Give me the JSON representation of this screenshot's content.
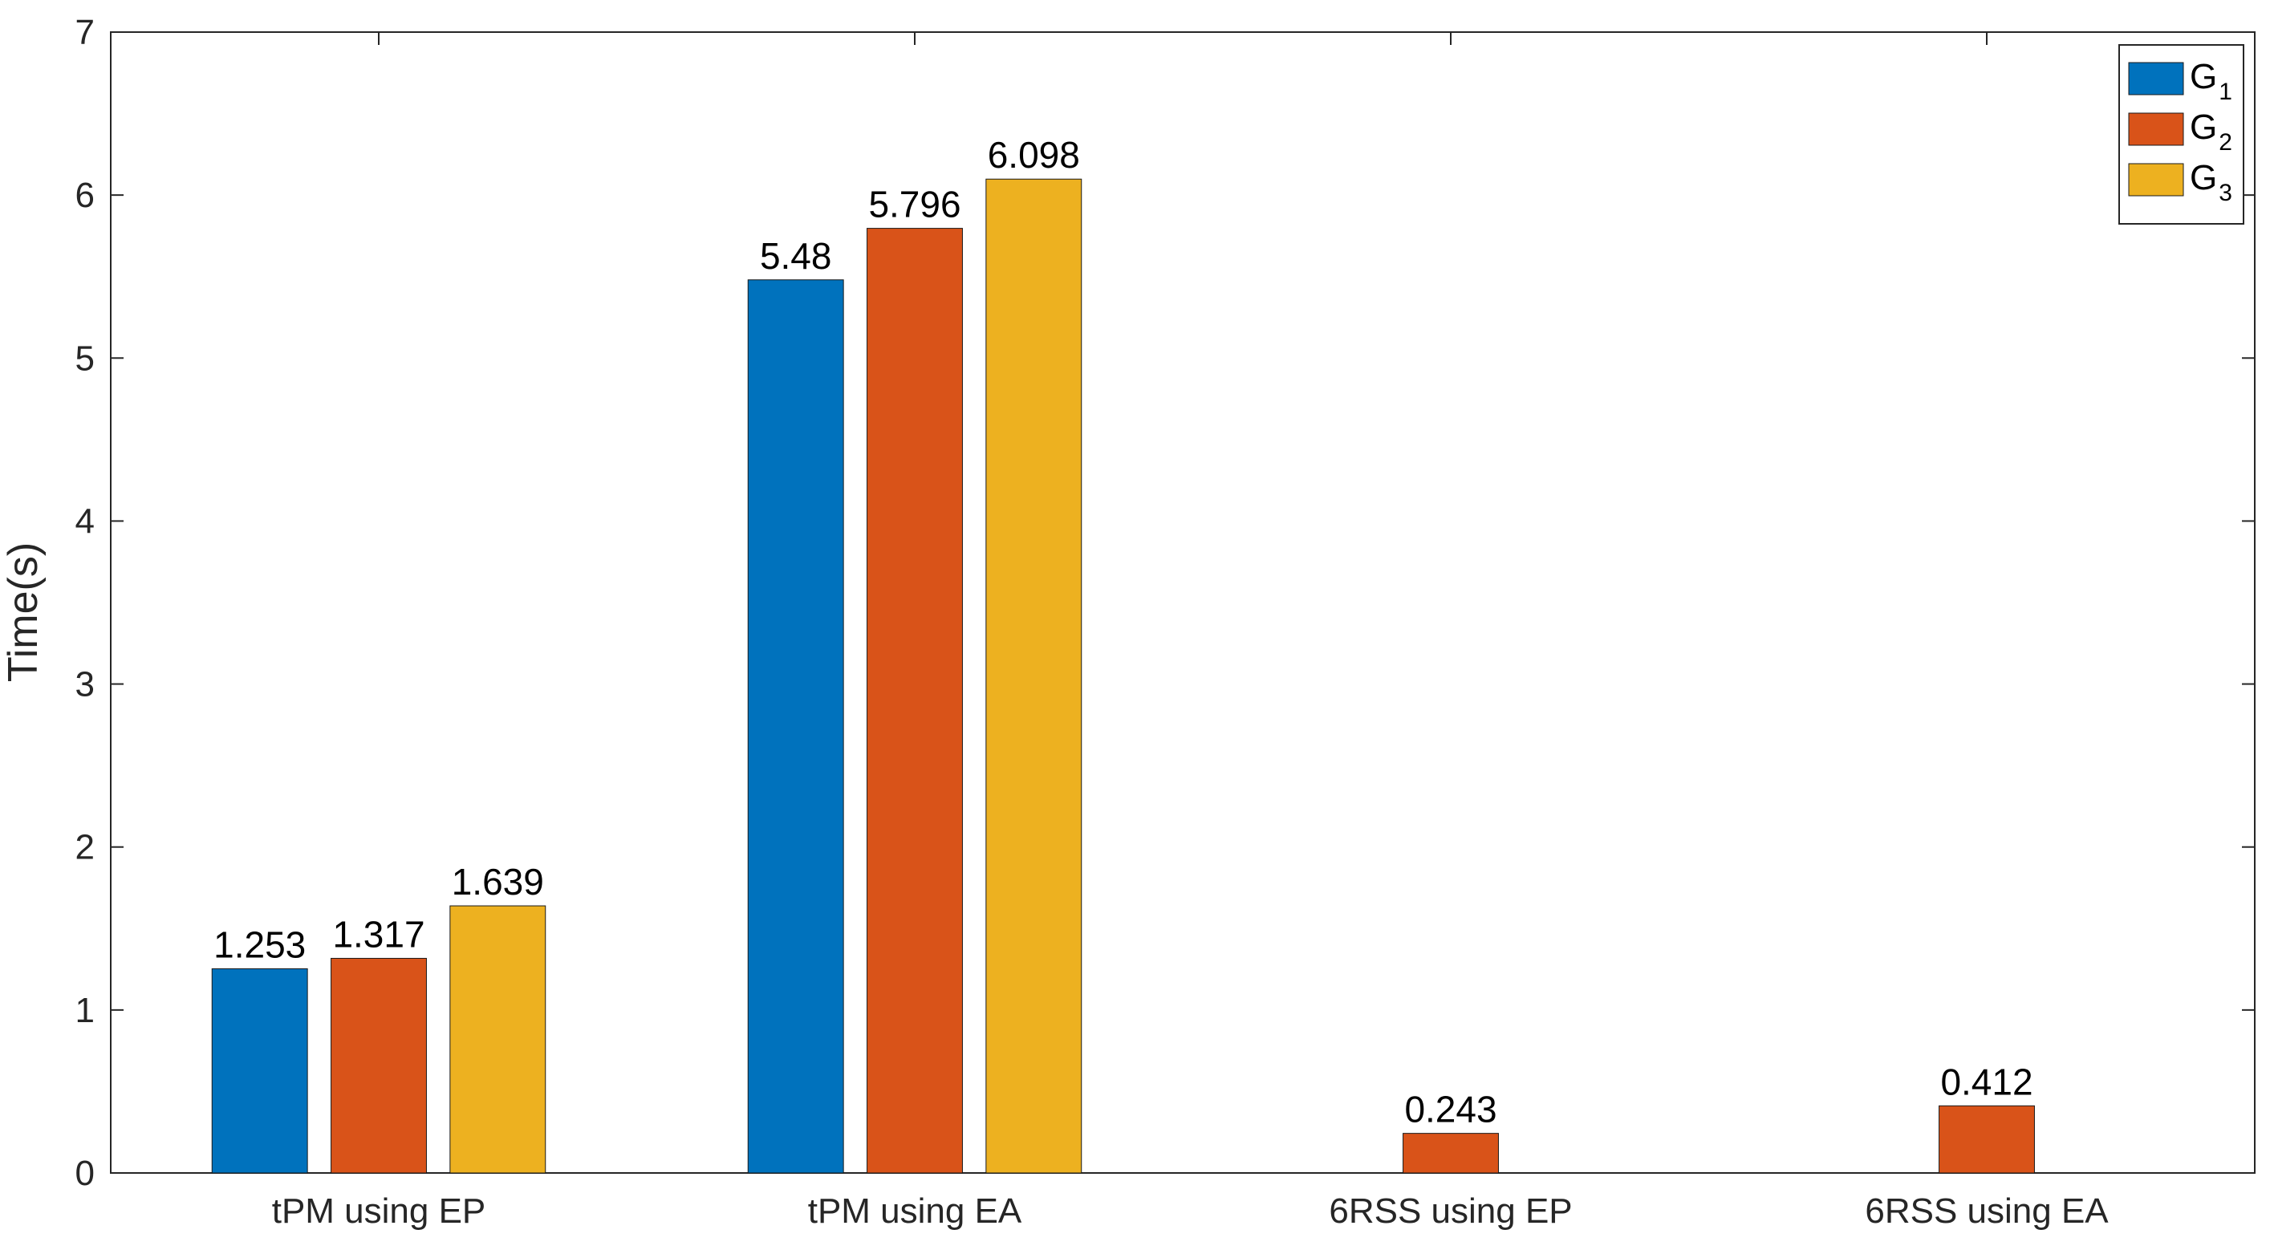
{
  "chart_data": {
    "type": "bar",
    "title": "",
    "xlabel": "",
    "ylabel": "Time(s)",
    "ylim": [
      0,
      7
    ],
    "yticks": [
      "0",
      "1",
      "2",
      "3",
      "4",
      "5",
      "6",
      "7"
    ],
    "categories": [
      "tPM using EP",
      "tPM using EA",
      "6RSS using EP",
      "6RSS using EA"
    ],
    "grid": false,
    "legend_position": "top-right",
    "series": [
      {
        "name": "G",
        "subscript": "1",
        "color": "#0072BD",
        "values": [
          1.253,
          5.48,
          null,
          null
        ],
        "labels": [
          "1.253",
          "5.48",
          "",
          ""
        ]
      },
      {
        "name": "G",
        "subscript": "2",
        "color": "#D95319",
        "values": [
          1.317,
          5.796,
          0.243,
          0.412
        ],
        "labels": [
          "1.317",
          "5.796",
          "0.243",
          "0.412"
        ]
      },
      {
        "name": "G",
        "subscript": "3",
        "color": "#EDB120",
        "values": [
          1.639,
          6.098,
          null,
          null
        ],
        "labels": [
          "1.639",
          "6.098",
          "",
          ""
        ]
      }
    ]
  }
}
